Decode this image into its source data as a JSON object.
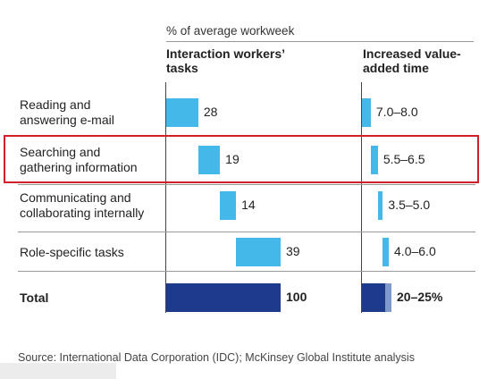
{
  "supertitle": "% of average workweek",
  "chart_data": [
    {
      "type": "bar",
      "subtype": "waterfall",
      "title": "Interaction workers’ tasks",
      "categories": [
        "Reading and answering e-mail",
        "Searching and gathering information",
        "Communicating and collaborating internally",
        "Role-specific tasks",
        "Total"
      ],
      "values": [
        28,
        19,
        14,
        39,
        100
      ],
      "labels": [
        "28",
        "19",
        "14",
        "39",
        "100"
      ],
      "xlim": [
        0,
        100
      ],
      "colors": {
        "segment": "#45b8ea",
        "total": "#1d3a8c"
      }
    },
    {
      "type": "bar",
      "subtype": "waterfall-range",
      "title": "Increased value-added time",
      "categories": [
        "Reading and answering e-mail",
        "Searching and gathering information",
        "Communicating and collaborating internally",
        "Role-specific tasks",
        "Total"
      ],
      "ranges": [
        [
          7.0,
          8.0
        ],
        [
          5.5,
          6.5
        ],
        [
          3.5,
          5.0
        ],
        [
          4.0,
          6.0
        ],
        [
          20,
          25
        ]
      ],
      "labels": [
        "7.0–8.0",
        "5.5–6.5",
        "3.5–5.0",
        "4.0–6.0",
        "20–25%"
      ],
      "xlim": [
        0,
        25
      ],
      "colors": {
        "segment": "#45b8ea",
        "total": "#1d3a8c",
        "total_range": "#7f9ac8"
      }
    }
  ],
  "row_labels": [
    [
      "Reading and",
      "answering e-mail"
    ],
    [
      "Searching and",
      "gathering information"
    ],
    [
      "Communicating and",
      "collaborating internally"
    ],
    [
      "Role-specific tasks"
    ],
    [
      "Total"
    ]
  ],
  "source": "Source: International Data Corporation (IDC); McKinsey Global Institute analysis"
}
